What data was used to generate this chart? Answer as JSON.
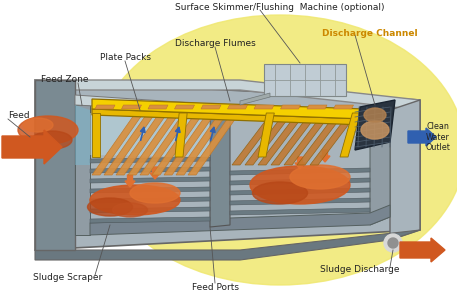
{
  "background_color": "#ffffff",
  "labels": {
    "surface_skimmer": "Surface Skimmer/Flushing  Machine (optional)",
    "discharge_channel": "Discharge Channel",
    "discharge_flumes": "Discharge Flumes",
    "plate_packs": "Plate Packs",
    "feed_zone": "Feed Zone",
    "feed": "Feed",
    "sludge_scraper": "Sludge Scraper",
    "feed_ports": "Feed Ports",
    "sludge_discharge": "Sludge Discharge",
    "clean_water": "Clean\nWater\nOutlet"
  },
  "colors": {
    "body_gray": "#a8b4bc",
    "body_dark": "#7a8a92",
    "body_light": "#c8d4d8",
    "body_shadow": "#6a7880",
    "orange": "#d05820",
    "orange_light": "#e07030",
    "yellow": "#e8b800",
    "yellow_light": "#f5d000",
    "plate_orange": "#d89040",
    "plate_dark": "#c07828",
    "blue_arrow": "#3060b0",
    "blue_water": "#7ab8d0",
    "dark_grid": "#2a3440",
    "grid_line": "#506070",
    "wall_inner": "#909ca4",
    "floor_gray": "#788590",
    "yellow_bg": "#f0e870"
  }
}
